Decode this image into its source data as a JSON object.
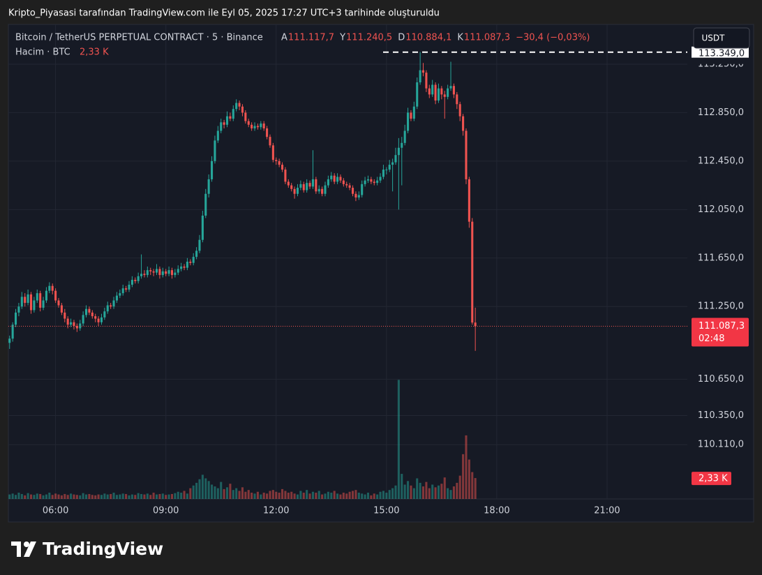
{
  "chart_data": {
    "type": "candlestick",
    "page_title": "Kripto_Piyasasi tarafından TradingView.com ile Eyl 05, 2025 17:27 UTC+3 tarihinde oluşturuldu",
    "symbol": "Bitcoin / TetherUS PERPETUAL CONTRACT · 5 · Binance",
    "ohlc_legend": [
      {
        "key": "A",
        "text": "111.117,7"
      },
      {
        "key": "Y",
        "text": "111.240,5"
      },
      {
        "key": "D",
        "text": "110.884,1"
      },
      {
        "key": "K",
        "text": "111.087,3"
      }
    ],
    "change": "−30,4 (−0,03%)",
    "volume_title": "Hacim · BTC",
    "volume_text": "2,33 K",
    "currency": "USDT",
    "price_badge": "111.087,3",
    "countdown": "02:48",
    "volume_badge": "2,33 K",
    "high_marker": {
      "value": 113349,
      "label": "113.349,0"
    },
    "brand": "TradingView",
    "up_color": "#26a69a",
    "down_color": "#ef5350",
    "grid": true,
    "xlim": [
      283,
      1391
    ],
    "xticks": [
      {
        "value": 360,
        "label": "06:00"
      },
      {
        "value": 540,
        "label": "09:00"
      },
      {
        "value": 720,
        "label": "12:00"
      },
      {
        "value": 900,
        "label": "15:00"
      },
      {
        "value": 1080,
        "label": "18:00"
      },
      {
        "value": 1260,
        "label": "21:00"
      }
    ],
    "ylim": [
      109662,
      113578
    ],
    "yticks": [
      {
        "value": 113250,
        "label": "113.250,0"
      },
      {
        "value": 112850,
        "label": "112.850,0"
      },
      {
        "value": 112450,
        "label": "112.450,0"
      },
      {
        "value": 112050,
        "label": "112.050,0"
      },
      {
        "value": 111650,
        "label": "111.650,0"
      },
      {
        "value": 111250,
        "label": "111.250,0"
      },
      {
        "value": 110650,
        "label": "110.650,0"
      },
      {
        "value": 110350,
        "label": "110.350,0"
      },
      {
        "value": 110110,
        "label": "110.110,0"
      }
    ],
    "volume_ylim": [
      0,
      53000
    ],
    "x": [
      285,
      290,
      295,
      300,
      305,
      310,
      315,
      320,
      325,
      330,
      335,
      340,
      345,
      350,
      355,
      360,
      365,
      370,
      375,
      380,
      385,
      390,
      395,
      400,
      405,
      410,
      415,
      420,
      425,
      430,
      435,
      440,
      445,
      450,
      455,
      460,
      465,
      470,
      475,
      480,
      485,
      490,
      495,
      500,
      505,
      510,
      515,
      520,
      525,
      530,
      535,
      540,
      545,
      550,
      555,
      560,
      565,
      570,
      575,
      580,
      585,
      590,
      595,
      600,
      605,
      610,
      615,
      620,
      625,
      630,
      635,
      640,
      645,
      650,
      655,
      660,
      665,
      670,
      675,
      680,
      685,
      690,
      695,
      700,
      705,
      710,
      715,
      720,
      725,
      730,
      735,
      740,
      745,
      750,
      755,
      760,
      765,
      770,
      775,
      780,
      785,
      790,
      795,
      800,
      805,
      810,
      815,
      820,
      825,
      830,
      835,
      840,
      845,
      850,
      855,
      860,
      865,
      870,
      875,
      880,
      885,
      890,
      895,
      900,
      905,
      910,
      915,
      920,
      925,
      930,
      935,
      940,
      945,
      950,
      955,
      960,
      965,
      970,
      975,
      980,
      985,
      990,
      995,
      1000,
      1005,
      1010,
      1015,
      1020,
      1025,
      1030,
      1035,
      1040,
      1045
    ],
    "candles": [
      [
        110950,
        111010,
        110900,
        110985
      ],
      [
        110985,
        111120,
        110960,
        111100
      ],
      [
        111100,
        111230,
        111080,
        111200
      ],
      [
        111200,
        111280,
        111170,
        111250
      ],
      [
        111250,
        111370,
        111230,
        111330
      ],
      [
        111330,
        111360,
        111250,
        111280
      ],
      [
        111280,
        111390,
        111260,
        111350
      ],
      [
        111350,
        111370,
        111190,
        111220
      ],
      [
        111220,
        111330,
        111200,
        111300
      ],
      [
        111300,
        111390,
        111280,
        111360
      ],
      [
        111360,
        111380,
        111210,
        111240
      ],
      [
        111240,
        111330,
        111220,
        111300
      ],
      [
        111300,
        111410,
        111280,
        111380
      ],
      [
        111380,
        111450,
        111360,
        111420
      ],
      [
        111420,
        111440,
        111350,
        111380
      ],
      [
        111380,
        111400,
        111280,
        111300
      ],
      [
        111300,
        111320,
        111240,
        111260
      ],
      [
        111260,
        111280,
        111180,
        111200
      ],
      [
        111200,
        111230,
        111120,
        111150
      ],
      [
        111150,
        111170,
        111070,
        111100
      ],
      [
        111100,
        111150,
        111080,
        111120
      ],
      [
        111120,
        111140,
        111060,
        111090
      ],
      [
        111090,
        111110,
        111040,
        111070
      ],
      [
        111070,
        111140,
        111050,
        111110
      ],
      [
        111110,
        111210,
        111090,
        111180
      ],
      [
        111180,
        111260,
        111160,
        111230
      ],
      [
        111230,
        111250,
        111180,
        111200
      ],
      [
        111200,
        111220,
        111150,
        111170
      ],
      [
        111170,
        111190,
        111120,
        111150
      ],
      [
        111150,
        111170,
        111090,
        111120
      ],
      [
        111120,
        111190,
        111100,
        111160
      ],
      [
        111160,
        111240,
        111140,
        111210
      ],
      [
        111210,
        111290,
        111190,
        111260
      ],
      [
        111260,
        111280,
        111230,
        111250
      ],
      [
        111250,
        111330,
        111230,
        111300
      ],
      [
        111300,
        111370,
        111280,
        111340
      ],
      [
        111340,
        111390,
        111320,
        111360
      ],
      [
        111360,
        111430,
        111340,
        111400
      ],
      [
        111400,
        111420,
        111370,
        111390
      ],
      [
        111390,
        111460,
        111370,
        111430
      ],
      [
        111430,
        111500,
        111410,
        111470
      ],
      [
        111470,
        111490,
        111440,
        111460
      ],
      [
        111460,
        111530,
        111440,
        111500
      ],
      [
        111500,
        111680,
        111480,
        111520
      ],
      [
        111520,
        111550,
        111490,
        111510
      ],
      [
        111510,
        111580,
        111490,
        111550
      ],
      [
        111550,
        111570,
        111510,
        111540
      ],
      [
        111540,
        111560,
        111500,
        111530
      ],
      [
        111530,
        111600,
        111510,
        111560
      ],
      [
        111560,
        111580,
        111480,
        111510
      ],
      [
        111510,
        111570,
        111490,
        111540
      ],
      [
        111540,
        111560,
        111500,
        111520
      ],
      [
        111520,
        111580,
        111500,
        111550
      ],
      [
        111550,
        111570,
        111480,
        111510
      ],
      [
        111510,
        111560,
        111490,
        111530
      ],
      [
        111530,
        111590,
        111510,
        111560
      ],
      [
        111560,
        111610,
        111540,
        111580
      ],
      [
        111580,
        111600,
        111550,
        111570
      ],
      [
        111570,
        111650,
        111550,
        111620
      ],
      [
        111620,
        111640,
        111590,
        111610
      ],
      [
        111610,
        111690,
        111590,
        111660
      ],
      [
        111660,
        111740,
        111640,
        111710
      ],
      [
        111710,
        111840,
        111690,
        111800
      ],
      [
        111800,
        112040,
        111780,
        112000
      ],
      [
        112000,
        112220,
        111980,
        112180
      ],
      [
        112180,
        112340,
        112150,
        112300
      ],
      [
        112300,
        112490,
        112280,
        112450
      ],
      [
        112450,
        112660,
        112430,
        112620
      ],
      [
        112620,
        112740,
        112600,
        112700
      ],
      [
        112700,
        112800,
        112680,
        112770
      ],
      [
        112770,
        112790,
        112720,
        112750
      ],
      [
        112750,
        112860,
        112730,
        112820
      ],
      [
        112820,
        112850,
        112780,
        112800
      ],
      [
        112800,
        112910,
        112780,
        112880
      ],
      [
        112880,
        112960,
        112860,
        112930
      ],
      [
        112930,
        112950,
        112870,
        112900
      ],
      [
        112900,
        112920,
        112820,
        112850
      ],
      [
        112850,
        112870,
        112760,
        112780
      ],
      [
        112780,
        112800,
        112730,
        112750
      ],
      [
        112750,
        112770,
        112700,
        112720
      ],
      [
        112720,
        112770,
        112700,
        112740
      ],
      [
        112740,
        112760,
        112710,
        112730
      ],
      [
        112730,
        112780,
        112710,
        112760
      ],
      [
        112760,
        112780,
        112700,
        112720
      ],
      [
        112720,
        112740,
        112630,
        112650
      ],
      [
        112650,
        112670,
        112560,
        112580
      ],
      [
        112580,
        112600,
        112440,
        112460
      ],
      [
        112460,
        112480,
        112420,
        112450
      ],
      [
        112450,
        112470,
        112400,
        112420
      ],
      [
        112420,
        112440,
        112360,
        112380
      ],
      [
        112380,
        112400,
        112260,
        112280
      ],
      [
        112280,
        112300,
        112230,
        112250
      ],
      [
        112250,
        112270,
        112200,
        112220
      ],
      [
        112220,
        112240,
        112140,
        112180
      ],
      [
        112180,
        112260,
        112160,
        112230
      ],
      [
        112230,
        112290,
        112210,
        112260
      ],
      [
        112260,
        112280,
        112190,
        112210
      ],
      [
        112210,
        112300,
        112190,
        112270
      ],
      [
        112270,
        112290,
        112220,
        112240
      ],
      [
        112240,
        112540,
        112220,
        112300
      ],
      [
        112300,
        112320,
        112180,
        112200
      ],
      [
        112200,
        112250,
        112180,
        112220
      ],
      [
        112220,
        112240,
        112160,
        112180
      ],
      [
        112180,
        112280,
        112160,
        112250
      ],
      [
        112250,
        112330,
        112230,
        112300
      ],
      [
        112300,
        112360,
        112280,
        112330
      ],
      [
        112330,
        112350,
        112260,
        112280
      ],
      [
        112280,
        112350,
        112260,
        112320
      ],
      [
        112320,
        112340,
        112270,
        112290
      ],
      [
        112290,
        112310,
        112240,
        112260
      ],
      [
        112260,
        112280,
        112230,
        112250
      ],
      [
        112250,
        112270,
        112210,
        112230
      ],
      [
        112230,
        112250,
        112160,
        112180
      ],
      [
        112180,
        112200,
        112120,
        112150
      ],
      [
        112150,
        112200,
        112130,
        112170
      ],
      [
        112170,
        112290,
        112150,
        112260
      ],
      [
        112260,
        112320,
        112240,
        112290
      ],
      [
        112290,
        112330,
        112270,
        112300
      ],
      [
        112300,
        112320,
        112260,
        112280
      ],
      [
        112280,
        112300,
        112250,
        112270
      ],
      [
        112270,
        112320,
        112250,
        112290
      ],
      [
        112290,
        112350,
        112270,
        112320
      ],
      [
        112320,
        112420,
        112300,
        112380
      ],
      [
        112380,
        112400,
        112340,
        112380
      ],
      [
        112380,
        112460,
        112360,
        112420
      ],
      [
        112420,
        112470,
        112200,
        112440
      ],
      [
        112440,
        112560,
        112420,
        112500
      ],
      [
        112500,
        112640,
        112050,
        112560
      ],
      [
        112560,
        112650,
        112250,
        112600
      ],
      [
        112600,
        112750,
        112580,
        112700
      ],
      [
        112700,
        112890,
        112680,
        112850
      ],
      [
        112850,
        112870,
        112780,
        112800
      ],
      [
        112800,
        112940,
        112780,
        112900
      ],
      [
        112900,
        113140,
        112880,
        113100
      ],
      [
        113100,
        113350,
        113080,
        113200
      ],
      [
        113200,
        113260,
        113150,
        113180
      ],
      [
        113180,
        113200,
        113020,
        113050
      ],
      [
        113050,
        113080,
        112970,
        113000
      ],
      [
        113000,
        113120,
        112980,
        113080
      ],
      [
        113080,
        113100,
        112920,
        112950
      ],
      [
        112950,
        113090,
        112930,
        113050
      ],
      [
        113050,
        113070,
        112960,
        113000
      ],
      [
        113000,
        113030,
        112800,
        112980
      ],
      [
        112980,
        113080,
        112960,
        113050
      ],
      [
        113050,
        113270,
        113030,
        113070
      ],
      [
        113070,
        113090,
        112970,
        113000
      ],
      [
        113000,
        113020,
        112880,
        112920
      ],
      [
        112920,
        112940,
        112780,
        112820
      ],
      [
        112820,
        112840,
        112660,
        112700
      ],
      [
        112700,
        112720,
        112260,
        112300
      ],
      [
        112300,
        112320,
        111900,
        111950
      ],
      [
        111950,
        111980,
        111100,
        111117.7
      ],
      [
        111117.7,
        111240.5,
        110884.1,
        111087.3
      ]
    ],
    "volume": [
      500,
      600,
      450,
      700,
      550,
      400,
      650,
      500,
      450,
      600,
      550,
      400,
      500,
      700,
      450,
      600,
      500,
      400,
      550,
      450,
      600,
      500,
      450,
      400,
      650,
      500,
      550,
      450,
      400,
      500,
      450,
      600,
      500,
      550,
      700,
      450,
      500,
      600,
      550,
      400,
      500,
      450,
      650,
      550,
      500,
      600,
      450,
      700,
      500,
      550,
      600,
      450,
      500,
      550,
      650,
      800,
      700,
      900,
      600,
      1200,
      1500,
      1800,
      2200,
      2700,
      2300,
      2000,
      1600,
      1400,
      1200,
      1900,
      1100,
      1300,
      1700,
      1000,
      1200,
      900,
      1300,
      800,
      1000,
      700,
      600,
      800,
      500,
      700,
      600,
      900,
      1000,
      800,
      700,
      1100,
      900,
      700,
      800,
      600,
      500,
      900,
      700,
      1000,
      600,
      800,
      700,
      900,
      500,
      600,
      800,
      700,
      900,
      600,
      500,
      700,
      600,
      800,
      900,
      1000,
      700,
      600,
      500,
      700,
      400,
      600,
      500,
      800,
      900,
      700,
      1000,
      1200,
      1500,
      13300,
      2800,
      1600,
      2000,
      1500,
      1200,
      2300,
      1800,
      1400,
      1900,
      1200,
      1600,
      1300,
      1500,
      1700,
      2400,
      1200,
      1000,
      1400,
      1800,
      2600,
      5000,
      7100,
      4400,
      3000,
      2330
    ]
  }
}
